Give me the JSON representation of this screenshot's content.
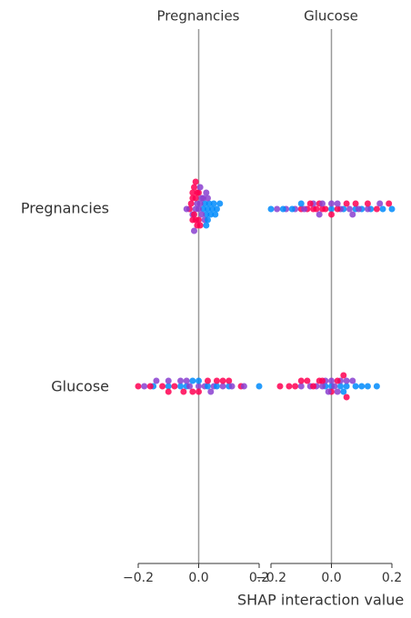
{
  "chart_data": {
    "type": "scatter",
    "column_titles": [
      "Pregnancies",
      "Glucose"
    ],
    "row_labels": [
      "Pregnancies",
      "Glucose"
    ],
    "xlabel": "SHAP interaction value",
    "xlim": [
      -0.2,
      0.2
    ],
    "xticks": [
      {
        "value": -0.2,
        "label": "−0.2"
      },
      {
        "value": 0,
        "label": "0.0"
      },
      {
        "value": 0.2,
        "label": "0.2"
      }
    ],
    "zero_line_color": "#999999",
    "panels": [
      [
        {
          "series": [
            {
              "color": "#ff0052",
              "values": [
                -0.03,
                -0.025,
                -0.02,
                -0.02,
                -0.015,
                -0.01,
                -0.01,
                -0.005,
                -0.005,
                0.0,
                0.0,
                0.005,
                -0.02,
                -0.015,
                -0.01
              ]
            },
            {
              "color": "#8a3fd0",
              "values": [
                -0.04,
                -0.02,
                -0.01,
                -0.005,
                0.0,
                0.005,
                0.01,
                0.01,
                0.015,
                0.02,
                0.025,
                0.03,
                0.005,
                -0.015
              ]
            },
            {
              "color": "#008bfb",
              "values": [
                0.015,
                0.02,
                0.025,
                0.03,
                0.035,
                0.04,
                0.045,
                0.05,
                0.055,
                0.06,
                0.07,
                0.03,
                0.025
              ]
            }
          ]
        },
        {
          "series": [
            {
              "color": "#ff0052",
              "values": [
                -0.1,
                -0.08,
                -0.06,
                -0.05,
                -0.04,
                -0.03,
                -0.02,
                0.0,
                0.02,
                0.05,
                0.08,
                0.12,
                0.15,
                0.19,
                -0.07
              ]
            },
            {
              "color": "#8a3fd0",
              "values": [
                -0.18,
                -0.15,
                -0.12,
                -0.09,
                -0.06,
                -0.03,
                0.0,
                0.03,
                0.06,
                0.09,
                0.12,
                0.16,
                -0.04,
                0.02,
                0.07
              ]
            },
            {
              "color": "#008bfb",
              "values": [
                -0.2,
                -0.16,
                -0.13,
                -0.1,
                0.0,
                0.04,
                0.08,
                0.1,
                0.13,
                0.17,
                0.2
              ]
            }
          ]
        }
      ],
      [
        {
          "series": [
            {
              "color": "#ff0052",
              "values": [
                -0.2,
                -0.16,
                -0.12,
                -0.08,
                -0.05,
                -0.02,
                0.0,
                0.03,
                0.06,
                0.1,
                0.14,
                -0.1,
                0.08
              ]
            },
            {
              "color": "#8a3fd0",
              "values": [
                -0.18,
                -0.14,
                -0.1,
                -0.06,
                -0.03,
                0.0,
                0.02,
                0.05,
                0.08,
                0.11,
                0.15,
                -0.04,
                0.04
              ]
            },
            {
              "color": "#008bfb",
              "values": [
                -0.15,
                -0.1,
                -0.06,
                -0.04,
                -0.02,
                0.0,
                0.03,
                0.06,
                0.1,
                0.2
              ]
            }
          ]
        },
        {
          "series": [
            {
              "color": "#ff0052",
              "values": [
                -0.17,
                -0.14,
                -0.12,
                -0.1,
                -0.08,
                -0.06,
                -0.04,
                0.0,
                0.02,
                0.04,
                0.05,
                -0.03
              ]
            },
            {
              "color": "#8a3fd0",
              "values": [
                -0.1,
                -0.07,
                -0.05,
                -0.03,
                -0.02,
                0.0,
                0.01,
                0.03,
                0.05,
                0.07,
                -0.01,
                0.02
              ]
            },
            {
              "color": "#008bfb",
              "values": [
                -0.02,
                0.0,
                0.03,
                0.05,
                0.08,
                0.1,
                0.12,
                0.15,
                0.04
              ]
            }
          ]
        }
      ]
    ]
  }
}
